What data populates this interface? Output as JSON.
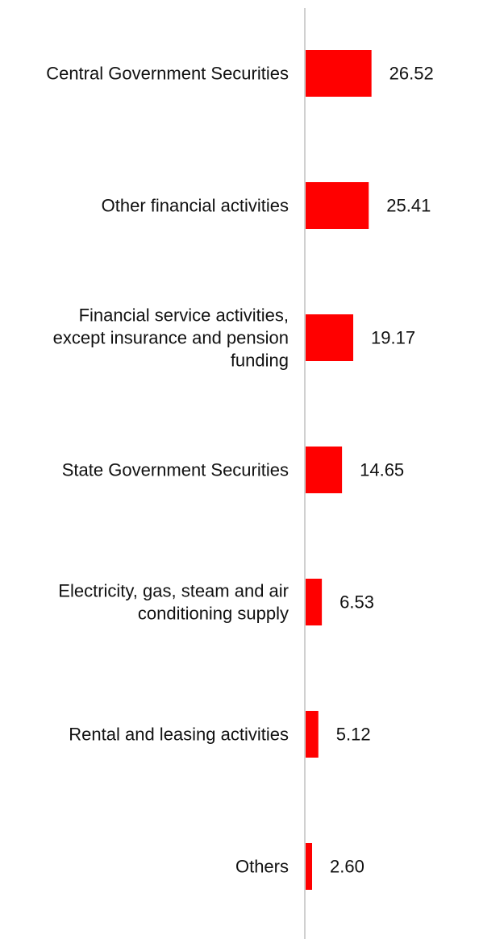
{
  "chart_data": {
    "type": "bar",
    "orientation": "horizontal",
    "categories": [
      "Central Government Securities",
      "Other financial activities",
      "Financial service activities, except insurance and pension funding",
      "State Government Securities",
      "Electricity, gas, steam and air conditioning supply",
      "Rental and leasing activities",
      "Others"
    ],
    "category_label_lines": [
      [
        "Central Government Securities"
      ],
      [
        "Other financial activities"
      ],
      [
        "Financial service activities,",
        "except insurance and pension",
        "funding"
      ],
      [
        "State Government Securities"
      ],
      [
        "Electricity, gas, steam and air",
        "conditioning supply"
      ],
      [
        "Rental and leasing activities"
      ],
      [
        "Others"
      ]
    ],
    "values": [
      26.52,
      25.41,
      19.17,
      14.65,
      6.53,
      5.12,
      2.6
    ],
    "value_labels": [
      "26.52",
      "25.41",
      "19.17",
      "14.65",
      "6.53",
      "5.12",
      "2.60"
    ],
    "bar_color": "#ff0000",
    "axis_line_color": "#d0d0d0",
    "xlim": [
      0,
      170
    ],
    "grid": false,
    "legend": "none"
  }
}
